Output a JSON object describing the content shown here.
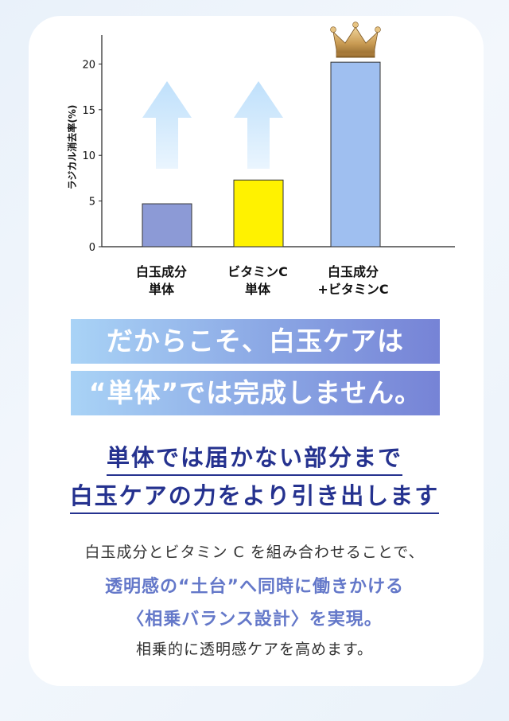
{
  "chart_data": {
    "type": "bar",
    "categories": [
      {
        "line1": "白玉成分",
        "line2": "単体"
      },
      {
        "line1": "ビタミンC",
        "line2": "単体"
      },
      {
        "line1": "白玉成分",
        "line2": "+ビタミンC"
      }
    ],
    "values": [
      4.7,
      7.3,
      20.2
    ],
    "ylabel": "ラジカル消去率(%)",
    "ylim": [
      0,
      23
    ],
    "yticks": [
      0,
      5,
      10,
      15,
      20
    ],
    "bar_colors": [
      "#8c9ad6",
      "#fff200",
      "#9fbff0"
    ],
    "arrows_on_categories": [
      0,
      1
    ],
    "crown_on_category": 2
  },
  "bands": [
    "だからこそ、白玉ケアは",
    "“単体”では完成しません。"
  ],
  "headline": [
    "単体では届かない部分まで",
    "白玉ケアの力をより引き出します"
  ],
  "body": {
    "line1": "白玉成分とビタミン C を組み合わせることで、",
    "accent1": "透明感の“土台”へ同時に働きかける",
    "accent2": "〈相乗バランス設計〉を実現。",
    "line4": "相乗的に透明感ケアを高めます。"
  },
  "colors": {
    "headline": "#25328f",
    "accent": "#6478c9",
    "band_start": "#a9d3f6",
    "band_end": "#7683d6"
  }
}
